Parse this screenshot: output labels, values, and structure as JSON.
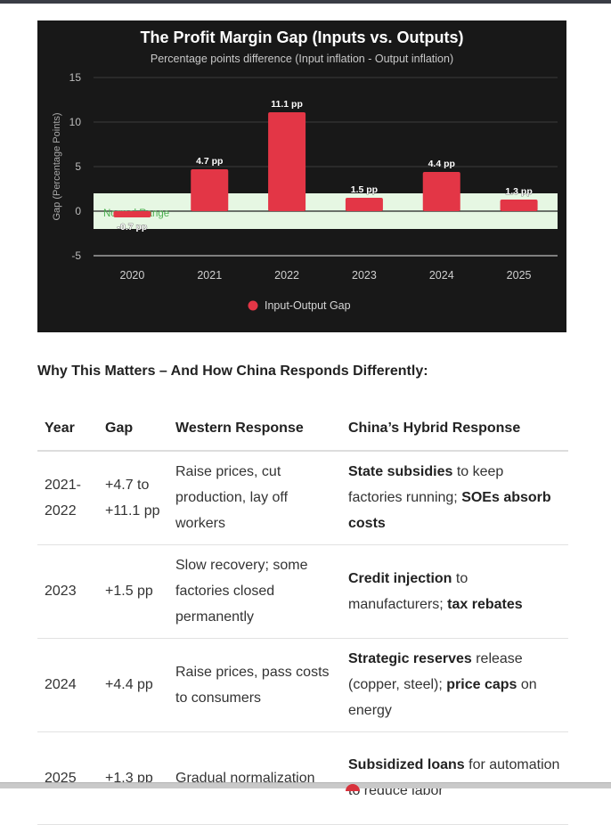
{
  "chart_data": {
    "type": "bar",
    "title": "The Profit Margin Gap (Inputs vs. Outputs)",
    "subtitle": "Percentage points difference (Input inflation - Output inflation)",
    "ylabel": "Gap (Percentage Points)",
    "ylim": [
      -5,
      15
    ],
    "yticks": [
      15,
      10,
      5,
      0,
      -5
    ],
    "grid": true,
    "categories": [
      "2020",
      "2021",
      "2022",
      "2023",
      "2024",
      "2025"
    ],
    "series": [
      {
        "name": "Input-Output Gap",
        "values": [
          -0.7,
          4.7,
          11.1,
          1.5,
          4.4,
          1.3
        ],
        "labels": [
          "-0.7 pp",
          "4.7 pp",
          "11.1 pp",
          "1.5 pp",
          "4.4 pp",
          "1.3 pp"
        ],
        "color": "#e33646"
      }
    ],
    "band": {
      "label": "Normal Range",
      "from": -2,
      "to": 2,
      "color": "#e6f7e3"
    },
    "legend_position": "bottom"
  },
  "section": {
    "heading": "Why This Matters – And How China Responds Differently:"
  },
  "table": {
    "headers": [
      "Year",
      "Gap",
      "Western Response",
      "China’s Hybrid Response"
    ],
    "rows": [
      {
        "year": "2021-2022",
        "gap": "+4.7 to +11.1 pp",
        "western": "Raise prices, cut production, lay off workers",
        "china": [
          {
            "text": "State subsidies",
            "bold": true
          },
          {
            "text": " to keep factories running; ",
            "bold": false
          },
          {
            "text": "SOEs absorb costs",
            "bold": true
          }
        ]
      },
      {
        "year": "2023",
        "gap": "+1.5 pp",
        "western": "Slow recovery; some factories closed permanently",
        "china": [
          {
            "text": "Credit injection",
            "bold": true
          },
          {
            "text": " to manufacturers; ",
            "bold": false
          },
          {
            "text": "tax rebates",
            "bold": true
          }
        ]
      },
      {
        "year": "2024",
        "gap": "+4.4 pp",
        "western": "Raise prices, pass costs to consumers",
        "china": [
          {
            "text": "Strategic reserves",
            "bold": true
          },
          {
            "text": " release (copper, steel); ",
            "bold": false
          },
          {
            "text": "price caps",
            "bold": true
          },
          {
            "text": " on energy",
            "bold": false
          }
        ]
      },
      {
        "year": "2025",
        "gap": "+1.3 pp",
        "western": "Gradual normalization",
        "china": [
          {
            "text": "Subsidized loans",
            "bold": true
          },
          {
            "text": " for automation to reduce labor",
            "bold": false
          }
        ]
      }
    ]
  }
}
